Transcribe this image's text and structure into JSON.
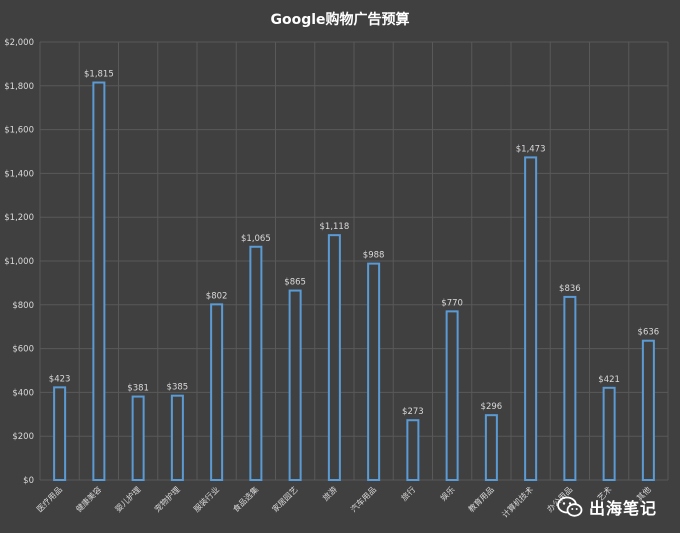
{
  "chart_data": {
    "type": "bar",
    "title": "Google购物广告预算",
    "xlabel": "",
    "ylabel": "",
    "categories": [
      "医疗用品",
      "健康美容",
      "婴儿护理",
      "宠物护理",
      "服装行业",
      "食品选集",
      "家居园艺",
      "旅游",
      "汽车用品",
      "旅行",
      "娱乐",
      "教育用品",
      "计算机技术",
      "办公用品",
      "艺术",
      "其他"
    ],
    "values": [
      423,
      1815,
      381,
      385,
      802,
      1065,
      865,
      1118,
      988,
      273,
      770,
      296,
      1473,
      836,
      421,
      636
    ],
    "data_labels": [
      "$423",
      "$1,815",
      "$381",
      "$385",
      "$802",
      "$1,065",
      "$865",
      "$1,118",
      "$988",
      "$273",
      "$770",
      "$296",
      "$1,473",
      "$836",
      "$421",
      "$636"
    ],
    "ylim": [
      0,
      2000
    ],
    "yticks": [
      0,
      200,
      400,
      600,
      800,
      1000,
      1200,
      1400,
      1600,
      1800,
      2000
    ],
    "ytick_labels": [
      "$0",
      "$200",
      "$400",
      "$600",
      "$800",
      "$1,000",
      "$1,200",
      "$1,400",
      "$1,600",
      "$1,800",
      "$2,000"
    ],
    "grid": true,
    "legend": "none",
    "colors": {
      "background": "#404040",
      "bar_fill": "#404040",
      "bar_stroke": "#5b9bd5",
      "grid": "#595959",
      "text": "#d9d9d9",
      "title": "#ffffff"
    }
  },
  "watermark": {
    "text": "出海笔记",
    "icon": "wechat-icon"
  }
}
